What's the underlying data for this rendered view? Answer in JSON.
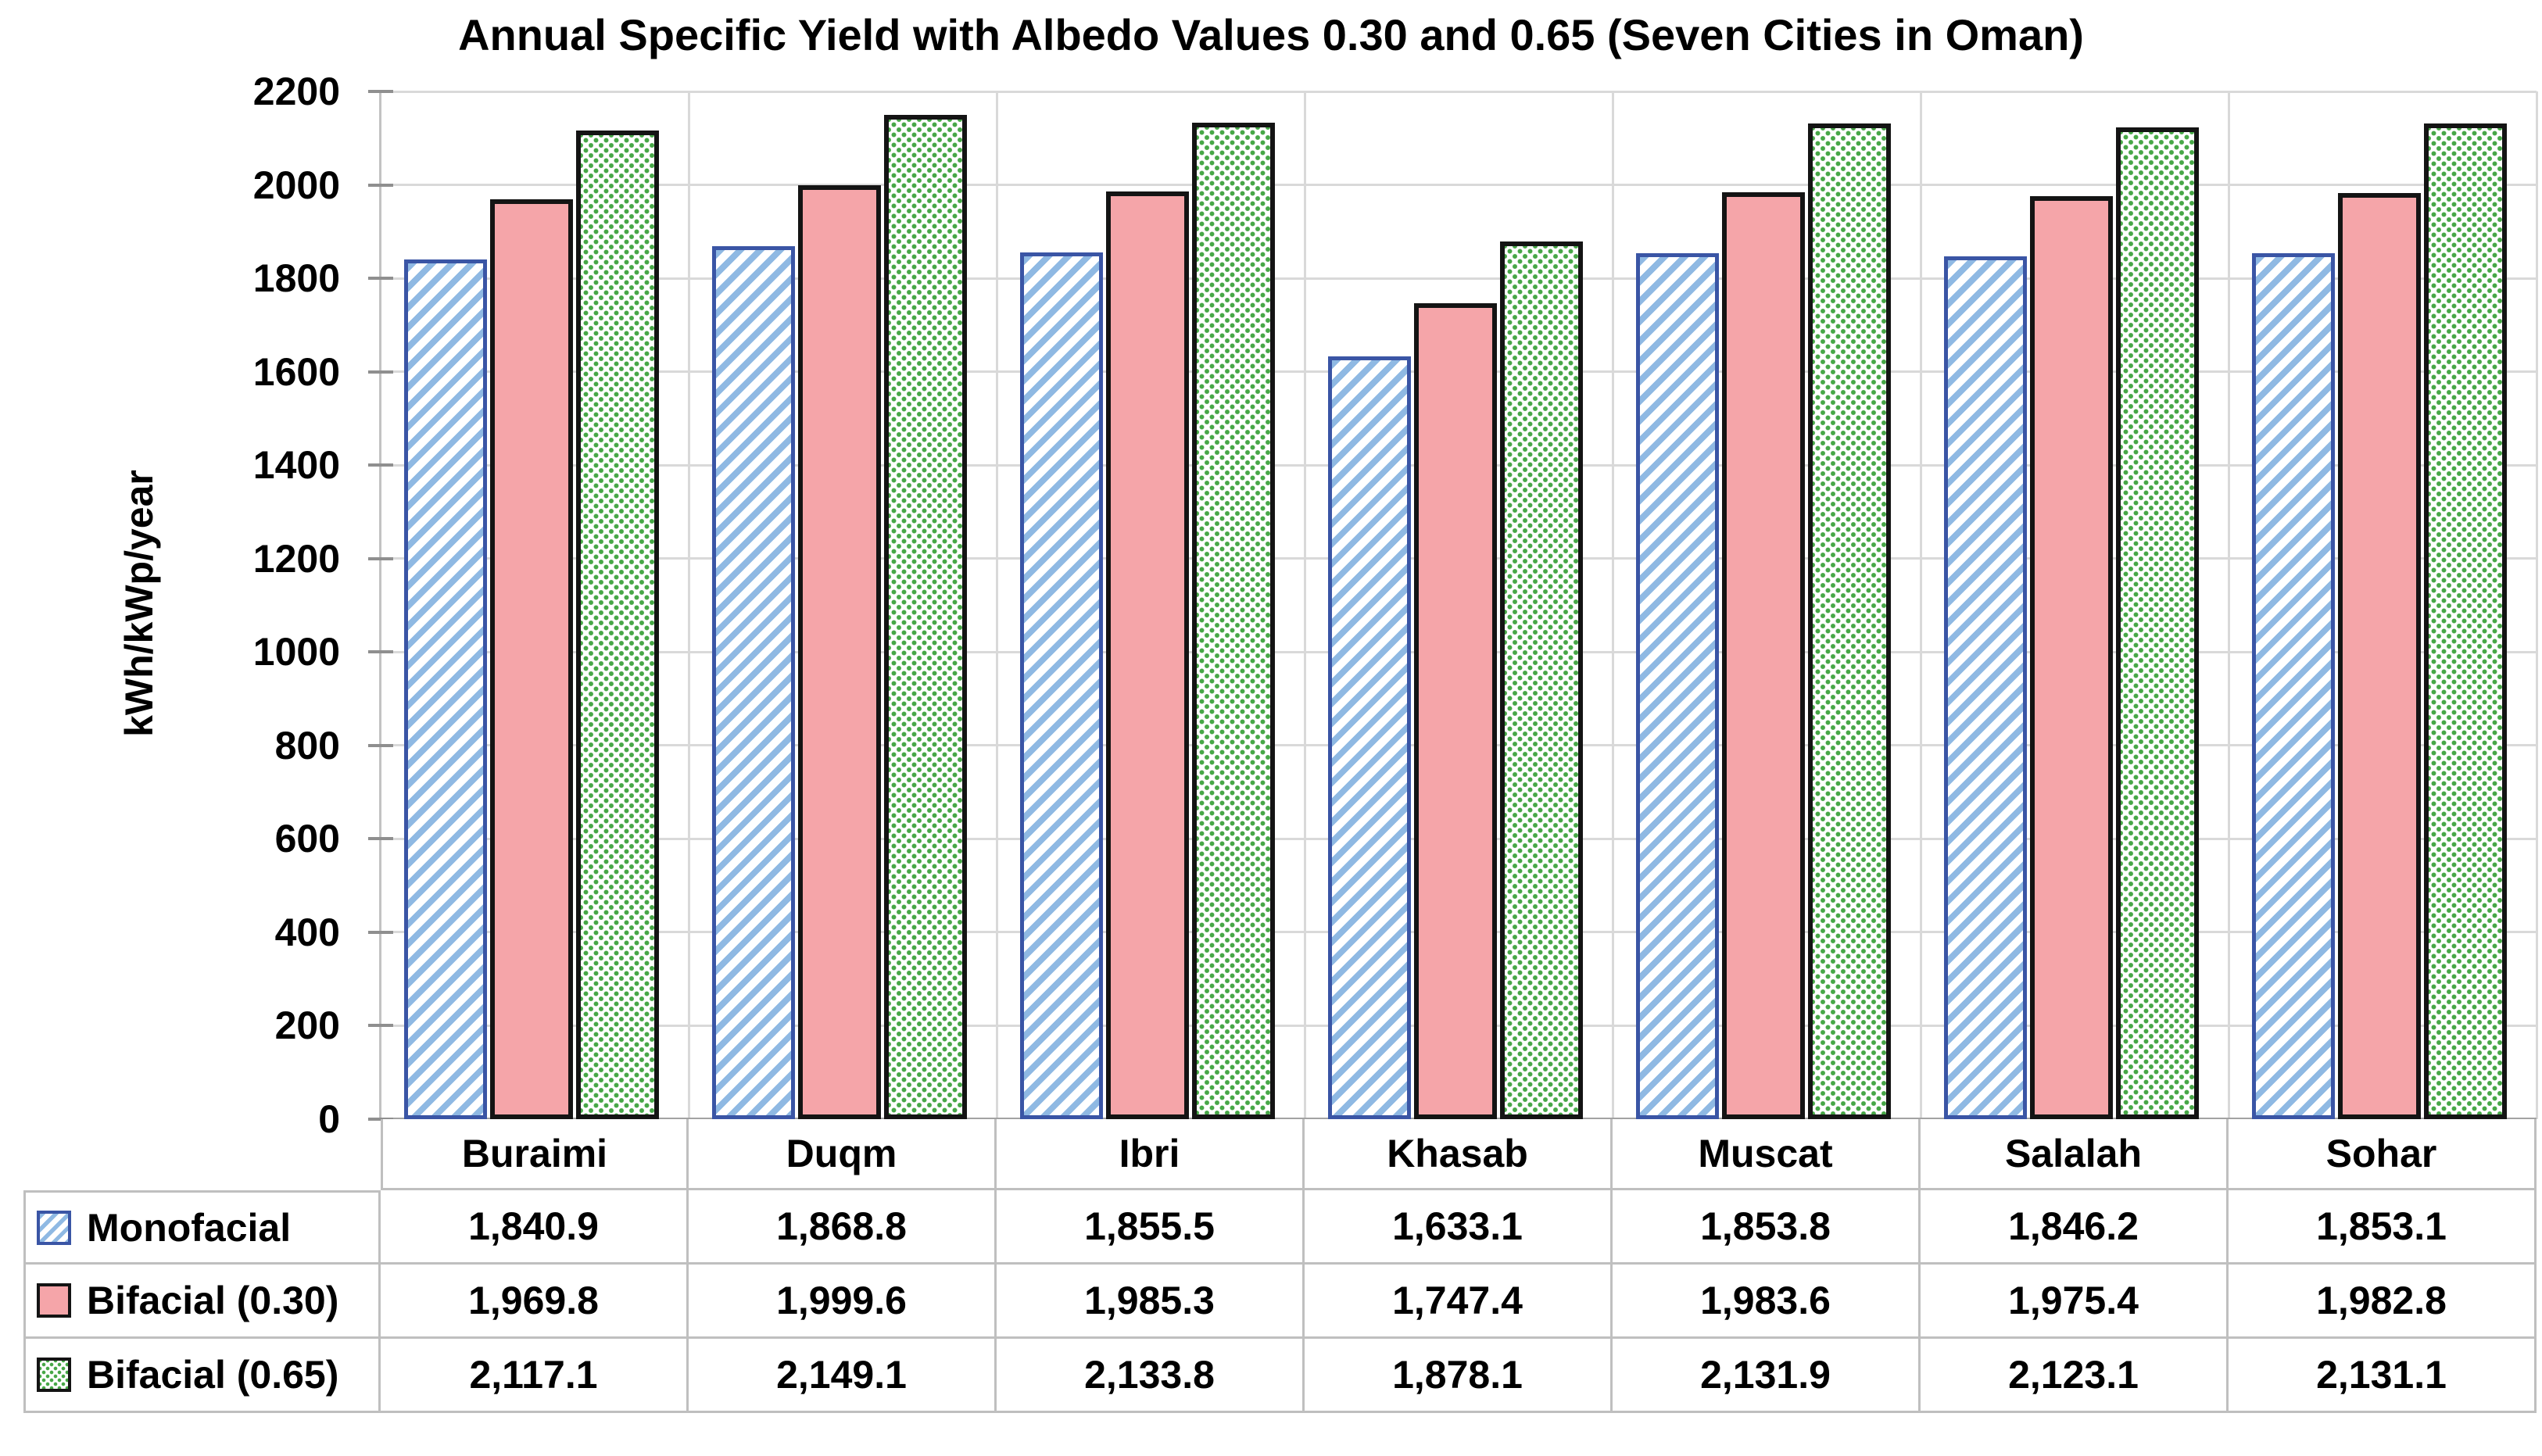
{
  "chart_data": {
    "type": "bar",
    "title": "Annual Specific Yield with Albedo Values 0.30 and 0.65 (Seven Cities in Oman)",
    "ylabel": "kWh/kWp/year",
    "ylim": [
      0,
      2200
    ],
    "ytick_step": 200,
    "yticks": [
      0,
      200,
      400,
      600,
      800,
      1000,
      1200,
      1400,
      1600,
      1800,
      2000,
      2200
    ],
    "grid": true,
    "legend_position": "data-table-left",
    "categories": [
      "Buraimi",
      "Duqm",
      "Ibri",
      "Khasab",
      "Muscat",
      "Salalah",
      "Sohar"
    ],
    "series": [
      {
        "name": "Monofacial",
        "swatch": "blue-diagonal-stripes",
        "fill_color": "#ffffff",
        "stripe_color": "#8fb9e3",
        "border_color": "#3a55a5",
        "values": [
          1840.9,
          1868.8,
          1855.5,
          1633.1,
          1853.8,
          1846.2,
          1853.1
        ],
        "display": [
          "1,840.9",
          "1,868.8",
          "1,855.5",
          "1,633.1",
          "1,853.8",
          "1,846.2",
          "1,853.1"
        ]
      },
      {
        "name": "Bifacial (0.30)",
        "swatch": "pink-solid",
        "fill_color": "#f5a5a9",
        "border_color": "#141414",
        "values": [
          1969.8,
          1999.6,
          1985.3,
          1747.4,
          1983.6,
          1975.4,
          1982.8
        ],
        "display": [
          "1,969.8",
          "1,999.6",
          "1,985.3",
          "1,747.4",
          "1,983.6",
          "1,975.4",
          "1,982.8"
        ]
      },
      {
        "name": "Bifacial (0.65)",
        "swatch": "green-dots",
        "fill_color": "#ffffff",
        "dot_color": "#47a747",
        "border_color": "#141414",
        "values": [
          2117.1,
          2149.1,
          2133.8,
          1878.1,
          2131.9,
          2123.1,
          2131.1
        ],
        "display": [
          "2,117.1",
          "2,149.1",
          "2,133.8",
          "1,878.1",
          "2,131.9",
          "2,123.1",
          "2,131.1"
        ]
      }
    ]
  }
}
